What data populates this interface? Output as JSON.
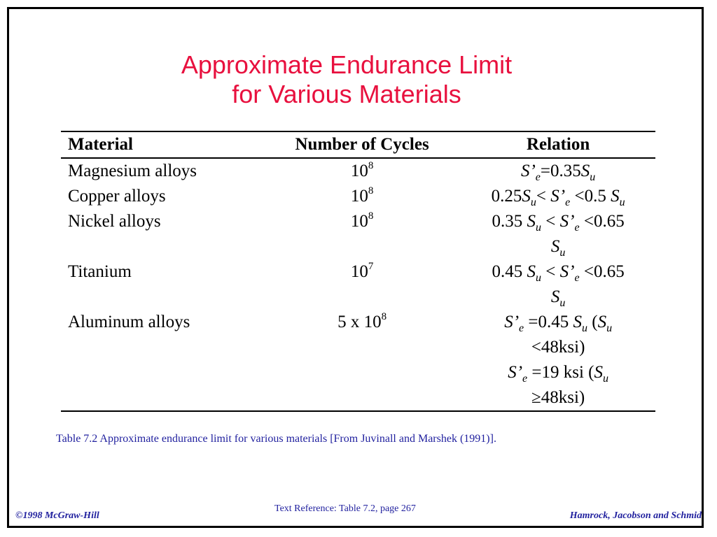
{
  "title": {
    "line1": "Approximate Endurance Limit",
    "line2": "for Various Materials"
  },
  "table": {
    "headers": [
      "Material",
      "Number of Cycles",
      "Relation"
    ],
    "rows": [
      {
        "material": "Magnesium alloys",
        "cycles_base": "10",
        "cycles_exp": "8",
        "relation": [
          "S’e=0.35Su"
        ]
      },
      {
        "material": "Copper alloys",
        "cycles_base": "10",
        "cycles_exp": "8",
        "relation": [
          "0.25Su< S’e <0.5 Su"
        ]
      },
      {
        "material": "Nickel alloys",
        "cycles_base": "10",
        "cycles_exp": "8",
        "relation": [
          "0.35 Su < S’e <0.65",
          "Su"
        ]
      },
      {
        "material": "Titanium",
        "cycles_base": "10",
        "cycles_exp": "7",
        "relation": [
          "0.45 Su < S’e <0.65",
          "Su"
        ]
      },
      {
        "material": "Aluminum alloys",
        "cycles_base": "5 x 10",
        "cycles_exp": "8",
        "relation": [
          "S’e =0.45 Su (Su",
          "<48ksi)",
          "S’e =19 ksi (Su",
          "≥48ksi)"
        ]
      }
    ]
  },
  "caption": "Table 7.2  Approximate endurance limit for various materials [From Juvinall and Marshek (1991)].",
  "footer": {
    "left": "©1998 McGraw-Hill",
    "center": "Text Reference:  Table  7.2,  page 267",
    "right": "Hamrock, Jacobson and Schmid"
  },
  "colors": {
    "title": "#e8103e",
    "caption": "#1f1f9e",
    "footer": "#1f1f9e"
  }
}
